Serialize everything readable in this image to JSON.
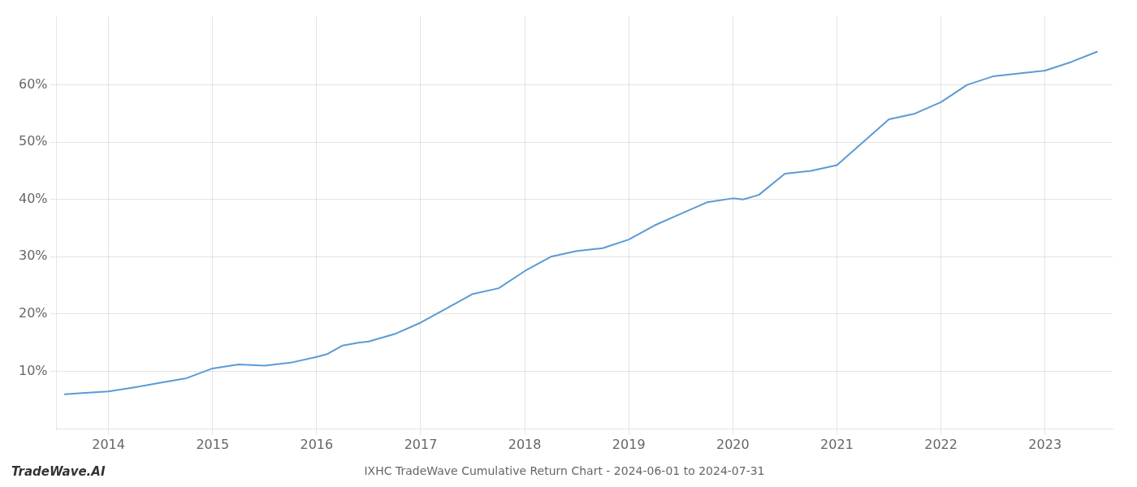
{
  "chart_data": {
    "type": "line",
    "title": "IXHC TradeWave Cumulative Return Chart - 2024-06-01 to 2024-07-31",
    "annotations": [
      "TradeWave.AI"
    ],
    "x": [
      2013.58,
      2013.75,
      2014.0,
      2014.25,
      2014.5,
      2014.75,
      2015.0,
      2015.25,
      2015.5,
      2015.75,
      2016.0,
      2016.1,
      2016.25,
      2016.4,
      2016.5,
      2016.75,
      2017.0,
      2017.25,
      2017.5,
      2017.75,
      2018.0,
      2018.25,
      2018.5,
      2018.75,
      2019.0,
      2019.25,
      2019.5,
      2019.75,
      2020.0,
      2020.1,
      2020.25,
      2020.5,
      2020.75,
      2021.0,
      2021.25,
      2021.5,
      2021.75,
      2022.0,
      2022.25,
      2022.5,
      2022.75,
      2023.0,
      2023.25,
      2023.5
    ],
    "values": [
      6.0,
      6.2,
      6.5,
      7.2,
      8.0,
      8.8,
      10.5,
      11.2,
      11.0,
      11.5,
      12.5,
      13.0,
      14.5,
      15.0,
      15.2,
      16.5,
      18.5,
      21.0,
      23.5,
      24.5,
      27.5,
      30.0,
      31.0,
      31.5,
      33.0,
      35.5,
      37.5,
      39.5,
      40.2,
      40.0,
      40.8,
      44.5,
      45.0,
      46.0,
      50.0,
      54.0,
      55.0,
      57.0,
      60.0,
      61.5,
      62.0,
      62.5,
      64.0,
      65.8
    ],
    "color": "#5b9bd5",
    "xlim": [
      2013.5,
      2023.65
    ],
    "xticks": [
      2014,
      2015,
      2016,
      2017,
      2018,
      2019,
      2020,
      2021,
      2022,
      2023
    ],
    "ylim": [
      0,
      72
    ],
    "yticks": [
      {
        "value": 10,
        "label": "10%"
      },
      {
        "value": 20,
        "label": "20%"
      },
      {
        "value": 30,
        "label": "30%"
      },
      {
        "value": 40,
        "label": "40%"
      },
      {
        "value": 50,
        "label": "50%"
      },
      {
        "value": 60,
        "label": "60%"
      }
    ],
    "grid": true
  }
}
